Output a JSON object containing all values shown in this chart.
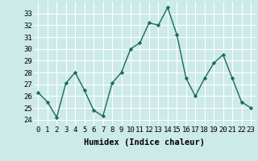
{
  "x": [
    0,
    1,
    2,
    3,
    4,
    5,
    6,
    7,
    8,
    9,
    10,
    11,
    12,
    13,
    14,
    15,
    16,
    17,
    18,
    19,
    20,
    21,
    22,
    23
  ],
  "y": [
    26.3,
    25.5,
    24.2,
    27.1,
    28.0,
    26.5,
    24.8,
    24.3,
    27.1,
    28.0,
    30.0,
    30.5,
    32.2,
    32.0,
    33.5,
    31.2,
    27.5,
    26.0,
    27.5,
    28.8,
    29.5,
    27.5,
    25.5,
    25.0
  ],
  "xlabel": "Humidex (Indice chaleur)",
  "ylim": [
    23.5,
    34.0
  ],
  "yticks": [
    24,
    25,
    26,
    27,
    28,
    29,
    30,
    31,
    32,
    33
  ],
  "xticks": [
    0,
    1,
    2,
    3,
    4,
    5,
    6,
    7,
    8,
    9,
    10,
    11,
    12,
    13,
    14,
    15,
    16,
    17,
    18,
    19,
    20,
    21,
    22,
    23
  ],
  "line_color": "#1a6b5a",
  "marker_color": "#1a6b5a",
  "bg_color": "#cceae7",
  "grid_color": "#ffffff",
  "tick_fontsize": 6.5,
  "label_fontsize": 7.5
}
